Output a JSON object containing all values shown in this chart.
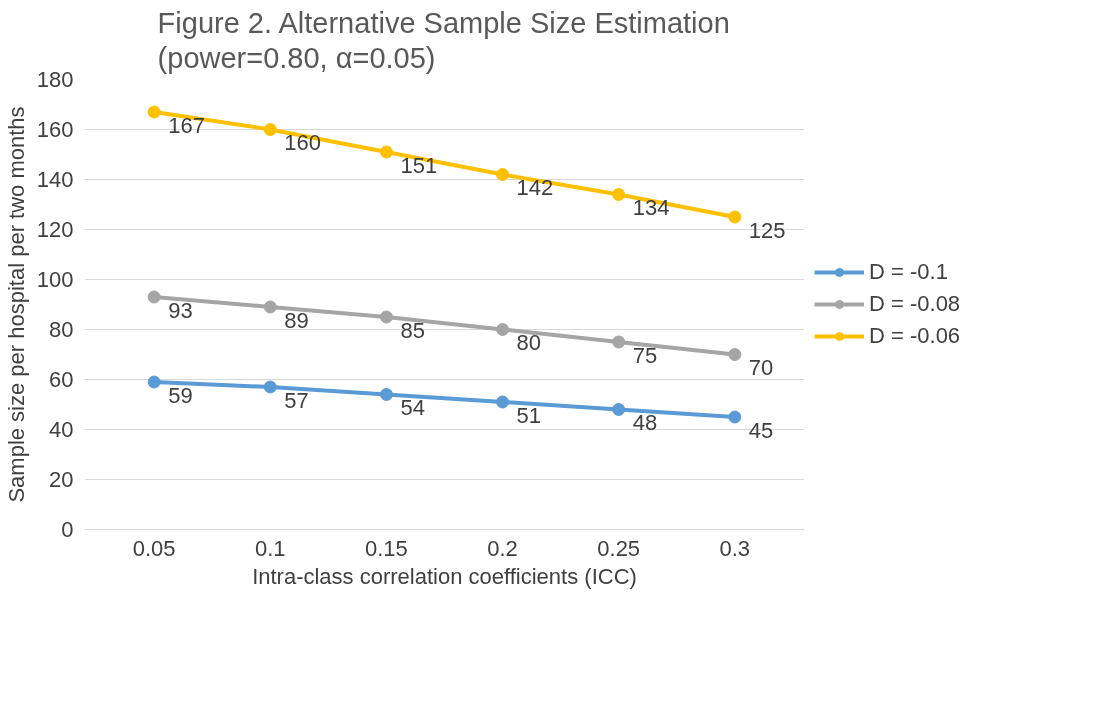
{
  "chart_data": {
    "type": "line",
    "title": "Figure 2. Alternative Sample Size Estimation\n(power=0.80, α=0.05)",
    "xlabel": "Intra-class correlation coefficients (ICC)",
    "ylabel": "Sample size per hospital per two months",
    "categories": [
      "0.05",
      "0.1",
      "0.15",
      "0.2",
      "0.25",
      "0.3"
    ],
    "series": [
      {
        "name": "D = -0.1",
        "color": "#5b9bd5",
        "values": [
          59,
          57,
          54,
          51,
          48,
          45
        ]
      },
      {
        "name": "D = -0.08",
        "color": "#a5a5a5",
        "values": [
          93,
          89,
          85,
          80,
          75,
          70
        ]
      },
      {
        "name": "D = -0.06",
        "color": "#ffc000",
        "values": [
          167,
          160,
          151,
          142,
          134,
          125
        ]
      }
    ],
    "ylim": [
      0,
      180
    ],
    "yticks": [
      0,
      20,
      40,
      60,
      80,
      100,
      120,
      140,
      160,
      180
    ],
    "grid": "y",
    "legend": "right",
    "marker": "circle",
    "line_style": "solid",
    "data_labels": true
  }
}
